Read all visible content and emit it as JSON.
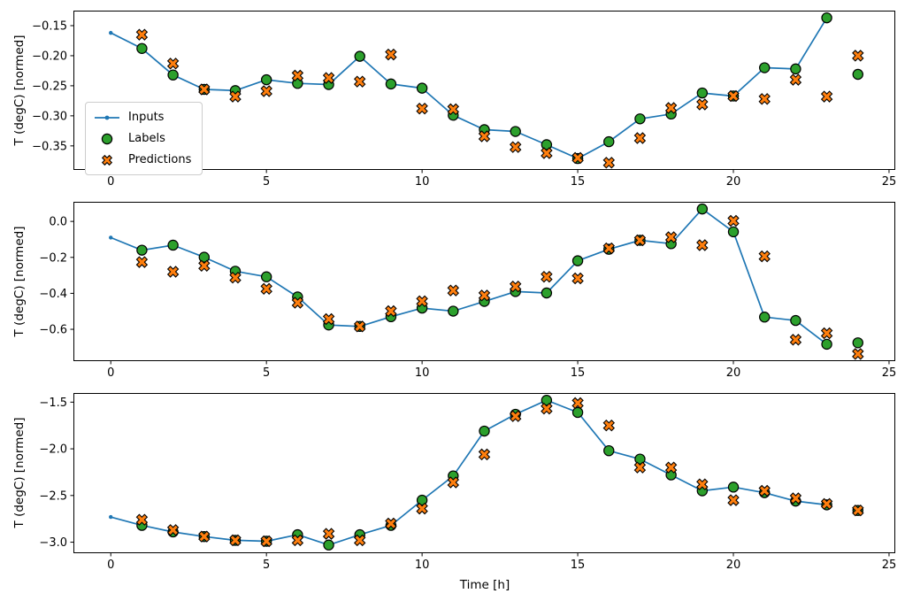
{
  "axes": {
    "ylabel": "T (degC) [normed]",
    "xlabel": "Time [h]"
  },
  "legend": {
    "items": [
      {
        "label": "Inputs",
        "marker": "line-dot"
      },
      {
        "label": "Labels",
        "marker": "circle"
      },
      {
        "label": "Predictions",
        "marker": "X"
      }
    ]
  },
  "colors": {
    "inputs": "#1f77b4",
    "labels": "#2ca02c",
    "predictions": "#ff7f0e",
    "edge": "#000000",
    "axis": "#000000"
  },
  "chart_data": [
    {
      "type": "line",
      "title": "",
      "ylabel": "T (degC) [normed]",
      "xlabel": "",
      "grid": false,
      "legend_position": "center-left",
      "xlim": [
        -1.2,
        25.2
      ],
      "ylim": [
        -0.39,
        -0.125
      ],
      "xticks": {
        "values": [
          0,
          5,
          10,
          15,
          20,
          25
        ],
        "labels": [
          "0",
          "5",
          "10",
          "15",
          "20",
          "25"
        ]
      },
      "yticks": {
        "values": [
          -0.15,
          -0.2,
          -0.25,
          -0.3,
          -0.35
        ],
        "labels": [
          "−0.15",
          "−0.20",
          "−0.25",
          "−0.30",
          "−0.35"
        ]
      },
      "series": [
        {
          "name": "Inputs",
          "type": "line+marker",
          "x": [
            0,
            1,
            2,
            3,
            4,
            5,
            6,
            7,
            8,
            9,
            10,
            11,
            12,
            13,
            14,
            15,
            16,
            17,
            18,
            19,
            20,
            21,
            22,
            23
          ],
          "y": [
            -0.162,
            -0.188,
            -0.232,
            -0.256,
            -0.258,
            -0.24,
            -0.246,
            -0.248,
            -0.201,
            -0.247,
            -0.254,
            -0.299,
            -0.323,
            -0.326,
            -0.348,
            -0.371,
            -0.343,
            -0.305,
            -0.297,
            -0.262,
            -0.267,
            -0.22,
            -0.222,
            -0.137
          ]
        },
        {
          "name": "Labels",
          "type": "scatter",
          "marker": "circle",
          "x": [
            1,
            2,
            3,
            4,
            5,
            6,
            7,
            8,
            9,
            10,
            11,
            12,
            13,
            14,
            15,
            16,
            17,
            18,
            19,
            20,
            21,
            22,
            23,
            24
          ],
          "y": [
            -0.188,
            -0.232,
            -0.256,
            -0.258,
            -0.24,
            -0.246,
            -0.248,
            -0.201,
            -0.247,
            -0.254,
            -0.299,
            -0.323,
            -0.326,
            -0.348,
            -0.371,
            -0.343,
            -0.305,
            -0.297,
            -0.262,
            -0.267,
            -0.22,
            -0.222,
            -0.137,
            -0.231
          ]
        },
        {
          "name": "Predictions",
          "type": "scatter",
          "marker": "X",
          "x": [
            1,
            2,
            3,
            4,
            5,
            6,
            7,
            8,
            9,
            10,
            11,
            12,
            13,
            14,
            15,
            16,
            17,
            18,
            19,
            20,
            21,
            22,
            23,
            24
          ],
          "y": [
            -0.165,
            -0.213,
            -0.256,
            -0.268,
            -0.259,
            -0.233,
            -0.237,
            -0.243,
            -0.198,
            -0.288,
            -0.289,
            -0.334,
            -0.352,
            -0.362,
            -0.37,
            -0.378,
            -0.337,
            -0.287,
            -0.281,
            -0.267,
            -0.272,
            -0.24,
            -0.268,
            -0.2
          ]
        }
      ]
    },
    {
      "type": "line",
      "title": "",
      "ylabel": "T (degC) [normed]",
      "xlabel": "",
      "grid": false,
      "xlim": [
        -1.2,
        25.2
      ],
      "ylim": [
        -0.777,
        0.109
      ],
      "xticks": {
        "values": [
          0,
          5,
          10,
          15,
          20,
          25
        ],
        "labels": [
          "0",
          "5",
          "10",
          "15",
          "20",
          "25"
        ]
      },
      "yticks": {
        "values": [
          0.0,
          -0.2,
          -0.4,
          -0.6
        ],
        "labels": [
          "0.0",
          "−0.2",
          "−0.4",
          "−0.6"
        ]
      },
      "series": [
        {
          "name": "Inputs",
          "type": "line+marker",
          "x": [
            0,
            1,
            2,
            3,
            4,
            5,
            6,
            7,
            8,
            9,
            10,
            11,
            12,
            13,
            14,
            15,
            16,
            17,
            18,
            19,
            20,
            21,
            22,
            23
          ],
          "y": [
            -0.09,
            -0.16,
            -0.132,
            -0.199,
            -0.277,
            -0.308,
            -0.42,
            -0.576,
            -0.584,
            -0.53,
            -0.482,
            -0.499,
            -0.445,
            -0.39,
            -0.398,
            -0.219,
            -0.155,
            -0.105,
            -0.124,
            0.069,
            -0.058,
            -0.532,
            -0.551,
            -0.683
          ]
        },
        {
          "name": "Labels",
          "type": "scatter",
          "marker": "circle",
          "x": [
            1,
            2,
            3,
            4,
            5,
            6,
            7,
            8,
            9,
            10,
            11,
            12,
            13,
            14,
            15,
            16,
            17,
            18,
            19,
            20,
            21,
            22,
            23,
            24
          ],
          "y": [
            -0.16,
            -0.132,
            -0.199,
            -0.277,
            -0.308,
            -0.42,
            -0.576,
            -0.584,
            -0.53,
            -0.482,
            -0.499,
            -0.445,
            -0.39,
            -0.398,
            -0.219,
            -0.155,
            -0.105,
            -0.124,
            0.069,
            -0.058,
            -0.532,
            -0.551,
            -0.683,
            -0.675
          ]
        },
        {
          "name": "Predictions",
          "type": "scatter",
          "marker": "X",
          "x": [
            1,
            2,
            3,
            4,
            5,
            6,
            7,
            8,
            9,
            10,
            11,
            12,
            13,
            14,
            15,
            16,
            17,
            18,
            19,
            20,
            21,
            22,
            23,
            24
          ],
          "y": [
            -0.226,
            -0.28,
            -0.247,
            -0.313,
            -0.375,
            -0.452,
            -0.543,
            -0.584,
            -0.499,
            -0.444,
            -0.384,
            -0.412,
            -0.362,
            -0.308,
            -0.317,
            -0.15,
            -0.105,
            -0.088,
            -0.132,
            0.003,
            -0.194,
            -0.658,
            -0.622,
            -0.737
          ]
        }
      ]
    },
    {
      "type": "line",
      "title": "",
      "ylabel": "T (degC) [normed]",
      "xlabel": "Time [h]",
      "grid": false,
      "xlim": [
        -1.2,
        25.2
      ],
      "ylim": [
        -3.118,
        -1.402
      ],
      "xticks": {
        "values": [
          0,
          5,
          10,
          15,
          20,
          25
        ],
        "labels": [
          "0",
          "5",
          "10",
          "15",
          "20",
          "25"
        ]
      },
      "yticks": {
        "values": [
          -1.5,
          -2.0,
          -2.5,
          -3.0
        ],
        "labels": [
          "−1.5",
          "−2.0",
          "−2.5",
          "−3.0"
        ]
      },
      "series": [
        {
          "name": "Inputs",
          "type": "line+marker",
          "x": [
            0,
            1,
            2,
            3,
            4,
            5,
            6,
            7,
            8,
            9,
            10,
            11,
            12,
            13,
            14,
            15,
            16,
            17,
            18,
            19,
            20,
            21,
            22,
            23
          ],
          "y": [
            -2.73,
            -2.82,
            -2.89,
            -2.94,
            -2.98,
            -2.99,
            -2.92,
            -3.03,
            -2.92,
            -2.82,
            -2.55,
            -2.29,
            -1.81,
            -1.63,
            -1.48,
            -1.61,
            -2.02,
            -2.11,
            -2.28,
            -2.45,
            -2.41,
            -2.47,
            -2.56,
            -2.6
          ]
        },
        {
          "name": "Labels",
          "type": "scatter",
          "marker": "circle",
          "x": [
            1,
            2,
            3,
            4,
            5,
            6,
            7,
            8,
            9,
            10,
            11,
            12,
            13,
            14,
            15,
            16,
            17,
            18,
            19,
            20,
            21,
            22,
            23,
            24
          ],
          "y": [
            -2.82,
            -2.89,
            -2.94,
            -2.98,
            -2.99,
            -2.92,
            -3.03,
            -2.92,
            -2.82,
            -2.55,
            -2.29,
            -1.81,
            -1.63,
            -1.48,
            -1.61,
            -2.02,
            -2.11,
            -2.28,
            -2.45,
            -2.41,
            -2.47,
            -2.56,
            -2.6,
            -2.66
          ]
        },
        {
          "name": "Predictions",
          "type": "scatter",
          "marker": "X",
          "x": [
            1,
            2,
            3,
            4,
            5,
            6,
            7,
            8,
            9,
            10,
            11,
            12,
            13,
            14,
            15,
            16,
            17,
            18,
            19,
            20,
            21,
            22,
            23,
            24
          ],
          "y": [
            -2.76,
            -2.87,
            -2.94,
            -2.98,
            -2.99,
            -2.98,
            -2.91,
            -2.98,
            -2.8,
            -2.64,
            -2.36,
            -2.06,
            -1.65,
            -1.57,
            -1.51,
            -1.75,
            -2.2,
            -2.2,
            -2.38,
            -2.55,
            -2.45,
            -2.53,
            -2.59,
            -2.66
          ]
        }
      ]
    }
  ]
}
